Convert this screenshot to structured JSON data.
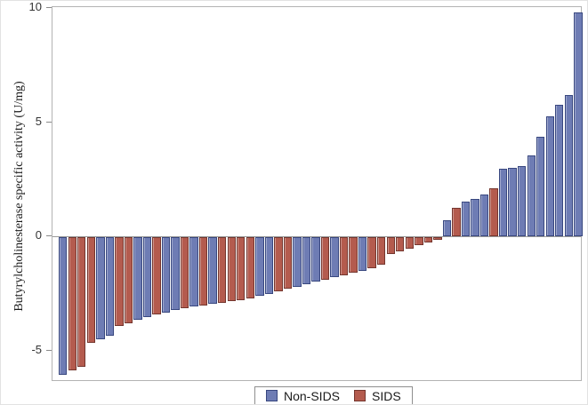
{
  "figure": {
    "y_axis_title": "Butyrylcholinesterase specific activity (U/mg)"
  },
  "legend": {
    "items": [
      {
        "label": "Non-SIDS",
        "color": "#6e7cb4",
        "border": "#38477f"
      },
      {
        "label": "SIDS",
        "color": "#b45b4e",
        "border": "#74362e"
      }
    ]
  },
  "colors": {
    "nonsids_fill": "#6e7cb4",
    "nonsids_border": "#38477f",
    "sids_fill": "#b45b4e",
    "sids_border": "#74362e",
    "frame": "#b3b3b3",
    "baseline": "#9a9a9a",
    "tick_text": "#333333"
  },
  "chart_data": {
    "type": "bar",
    "title": "",
    "xlabel": "",
    "ylabel": "Butyrylcholinesterase specific activity (U/mg)",
    "ylim": [
      -6.4,
      10
    ],
    "yticks": [
      10,
      5,
      0,
      -5
    ],
    "grid": false,
    "legend_position": "bottom-center",
    "sort": "ascending by value, each subject one bar",
    "series_legend": [
      "Non-SIDS",
      "SIDS"
    ],
    "bars": [
      {
        "group": "Non-SIDS",
        "value": -6.05
      },
      {
        "group": "SIDS",
        "value": -5.82
      },
      {
        "group": "SIDS",
        "value": -5.7
      },
      {
        "group": "SIDS",
        "value": -4.62
      },
      {
        "group": "Non-SIDS",
        "value": -4.47
      },
      {
        "group": "Non-SIDS",
        "value": -4.3
      },
      {
        "group": "SIDS",
        "value": -3.88
      },
      {
        "group": "SIDS",
        "value": -3.76
      },
      {
        "group": "Non-SIDS",
        "value": -3.62
      },
      {
        "group": "Non-SIDS",
        "value": -3.5
      },
      {
        "group": "SIDS",
        "value": -3.4
      },
      {
        "group": "Non-SIDS",
        "value": -3.3
      },
      {
        "group": "Non-SIDS",
        "value": -3.21
      },
      {
        "group": "SIDS",
        "value": -3.12
      },
      {
        "group": "Non-SIDS",
        "value": -3.05
      },
      {
        "group": "SIDS",
        "value": -2.98
      },
      {
        "group": "Non-SIDS",
        "value": -2.92
      },
      {
        "group": "SIDS",
        "value": -2.87
      },
      {
        "group": "SIDS",
        "value": -2.82
      },
      {
        "group": "SIDS",
        "value": -2.76
      },
      {
        "group": "SIDS",
        "value": -2.68
      },
      {
        "group": "Non-SIDS",
        "value": -2.58
      },
      {
        "group": "Non-SIDS",
        "value": -2.48
      },
      {
        "group": "SIDS",
        "value": -2.36
      },
      {
        "group": "SIDS",
        "value": -2.26
      },
      {
        "group": "Non-SIDS",
        "value": -2.16
      },
      {
        "group": "Non-SIDS",
        "value": -2.06
      },
      {
        "group": "Non-SIDS",
        "value": -1.96
      },
      {
        "group": "SIDS",
        "value": -1.86
      },
      {
        "group": "Non-SIDS",
        "value": -1.76
      },
      {
        "group": "SIDS",
        "value": -1.66
      },
      {
        "group": "SIDS",
        "value": -1.56
      },
      {
        "group": "Non-SIDS",
        "value": -1.46
      },
      {
        "group": "SIDS",
        "value": -1.36
      },
      {
        "group": "SIDS",
        "value": -1.2
      },
      {
        "group": "SIDS",
        "value": -0.75
      },
      {
        "group": "SIDS",
        "value": -0.62
      },
      {
        "group": "SIDS",
        "value": -0.5
      },
      {
        "group": "SIDS",
        "value": -0.35
      },
      {
        "group": "SIDS",
        "value": -0.22
      },
      {
        "group": "SIDS",
        "value": -0.1
      },
      {
        "group": "Non-SIDS",
        "value": 0.7
      },
      {
        "group": "SIDS",
        "value": 1.25
      },
      {
        "group": "Non-SIDS",
        "value": 1.5
      },
      {
        "group": "Non-SIDS",
        "value": 1.65
      },
      {
        "group": "Non-SIDS",
        "value": 1.82
      },
      {
        "group": "SIDS",
        "value": 2.1
      },
      {
        "group": "Non-SIDS",
        "value": 2.95
      },
      {
        "group": "Non-SIDS",
        "value": 3.0
      },
      {
        "group": "Non-SIDS",
        "value": 3.06
      },
      {
        "group": "Non-SIDS",
        "value": 3.55
      },
      {
        "group": "Non-SIDS",
        "value": 4.35
      },
      {
        "group": "Non-SIDS",
        "value": 5.25
      },
      {
        "group": "Non-SIDS",
        "value": 5.75
      },
      {
        "group": "Non-SIDS",
        "value": 6.2
      },
      {
        "group": "Non-SIDS",
        "value": 9.8
      }
    ]
  }
}
